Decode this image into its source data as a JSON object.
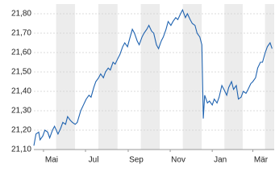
{
  "chart_data": {
    "type": "line",
    "xticks": [
      {
        "value": 0,
        "label": "Mai"
      },
      {
        "value": 61,
        "label": "Jul"
      },
      {
        "value": 123,
        "label": "Sep"
      },
      {
        "value": 184,
        "label": "Nov"
      },
      {
        "value": 245,
        "label": "Jan"
      },
      {
        "value": 304,
        "label": "Mär"
      }
    ],
    "xlim": [
      -14,
      335
    ],
    "ylim": [
      21.1,
      21.85
    ],
    "yticks": [
      {
        "value": 21.1,
        "label": "21,10"
      },
      {
        "value": 21.2,
        "label": "21,20"
      },
      {
        "value": 21.3,
        "label": "21,30"
      },
      {
        "value": 21.4,
        "label": "21,40"
      },
      {
        "value": 21.5,
        "label": "21,50"
      },
      {
        "value": 21.6,
        "label": "21,60"
      },
      {
        "value": 21.7,
        "label": "21,70"
      },
      {
        "value": 21.8,
        "label": "21,80"
      }
    ],
    "grid": true,
    "series": [
      {
        "color": "#1f63b0",
        "x": [
          -14,
          -11,
          -7,
          -5,
          -1,
          2,
          6,
          9,
          13,
          16,
          21,
          25,
          28,
          32,
          35,
          39,
          42,
          46,
          49,
          54,
          58,
          62,
          66,
          69,
          73,
          76,
          80,
          83,
          87,
          90,
          94,
          97,
          101,
          104,
          108,
          111,
          115,
          118,
          122,
          125,
          129,
          132,
          136,
          139,
          143,
          146,
          150,
          153,
          157,
          160,
          164,
          167,
          171,
          174,
          178,
          181,
          185,
          188,
          192,
          195,
          199,
          202,
          206,
          209,
          213,
          216,
          220,
          223,
          227,
          230,
          232,
          234,
          238,
          241,
          245,
          248,
          252,
          255,
          259,
          262,
          266,
          269,
          273,
          276,
          280,
          283,
          287,
          290,
          294,
          297,
          301,
          304,
          308,
          311,
          315,
          318,
          322,
          325,
          329,
          332
        ],
        "values": [
          21.12,
          21.18,
          21.19,
          21.15,
          21.17,
          21.2,
          21.19,
          21.16,
          21.2,
          21.22,
          21.18,
          21.21,
          21.24,
          21.23,
          21.27,
          21.25,
          21.24,
          21.23,
          21.24,
          21.3,
          21.33,
          21.36,
          21.38,
          21.37,
          21.42,
          21.45,
          21.47,
          21.49,
          21.47,
          21.5,
          21.52,
          21.51,
          21.55,
          21.54,
          21.57,
          21.59,
          21.63,
          21.65,
          21.63,
          21.67,
          21.72,
          21.7,
          21.66,
          21.64,
          21.68,
          21.7,
          21.72,
          21.74,
          21.71,
          21.7,
          21.64,
          21.62,
          21.66,
          21.68,
          21.72,
          21.76,
          21.74,
          21.76,
          21.78,
          21.77,
          21.8,
          21.82,
          21.78,
          21.8,
          21.77,
          21.75,
          21.74,
          21.7,
          21.68,
          21.64,
          21.26,
          21.38,
          21.34,
          21.35,
          21.33,
          21.36,
          21.34,
          21.37,
          21.43,
          21.41,
          21.38,
          21.42,
          21.45,
          21.41,
          21.43,
          21.36,
          21.37,
          21.4,
          21.39,
          21.41,
          21.44,
          21.45,
          21.47,
          21.52,
          21.55,
          21.55,
          21.6,
          21.63,
          21.65,
          21.62
        ]
      }
    ]
  }
}
